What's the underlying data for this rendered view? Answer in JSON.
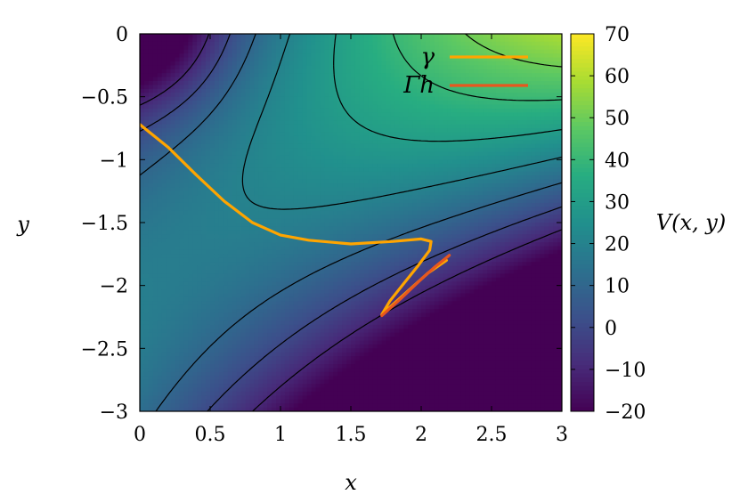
{
  "chart_data": {
    "type": "heatmap",
    "title": "",
    "xlabel": "x",
    "ylabel": "y",
    "colorbar_label": "V(x, y)",
    "xlim": [
      0,
      3
    ],
    "ylim": [
      -3,
      0
    ],
    "clim": [
      -20,
      70
    ],
    "colormap": "viridis",
    "grid": false,
    "legend_position": "top-right",
    "x_ticks": [
      0,
      0.5,
      1,
      1.5,
      2,
      2.5,
      3
    ],
    "x_tick_labels": [
      "0",
      "0.5",
      "1",
      "1.5",
      "2",
      "2.5",
      "3"
    ],
    "y_ticks": [
      0,
      -0.5,
      -1,
      -1.5,
      -2,
      -2.5,
      -3
    ],
    "y_tick_labels": [
      "0",
      "−0.5",
      "−1",
      "−1.5",
      "−2",
      "−2.5",
      "−3"
    ],
    "colorbar_ticks": [
      70,
      60,
      50,
      40,
      30,
      20,
      10,
      0,
      -10,
      -20
    ],
    "colorbar_tick_labels": [
      "70",
      "60",
      "50",
      "40",
      "30",
      "20",
      "10",
      "0",
      "−10",
      "−20"
    ],
    "contour_color": "#000000",
    "series": [
      {
        "name": "γ",
        "color": "#FFA500",
        "points": [
          [
            0.0,
            -0.72
          ],
          [
            0.2,
            -0.9
          ],
          [
            0.4,
            -1.12
          ],
          [
            0.6,
            -1.33
          ],
          [
            0.8,
            -1.5
          ],
          [
            1.0,
            -1.6
          ],
          [
            1.2,
            -1.64
          ],
          [
            1.5,
            -1.67
          ],
          [
            1.8,
            -1.65
          ],
          [
            2.0,
            -1.63
          ],
          [
            2.07,
            -1.65
          ],
          [
            2.06,
            -1.72
          ],
          [
            1.98,
            -1.84
          ],
          [
            1.88,
            -1.98
          ],
          [
            1.78,
            -2.12
          ],
          [
            1.72,
            -2.23
          ],
          [
            1.75,
            -2.2
          ],
          [
            1.88,
            -2.07
          ],
          [
            2.05,
            -1.9
          ],
          [
            2.18,
            -1.8
          ]
        ]
      },
      {
        "name": "Γh",
        "color": "#E8571E",
        "points": [
          [
            1.72,
            -2.24
          ],
          [
            1.85,
            -2.11
          ],
          [
            2.0,
            -1.95
          ],
          [
            2.1,
            -1.85
          ],
          [
            2.2,
            -1.76
          ]
        ]
      }
    ]
  }
}
